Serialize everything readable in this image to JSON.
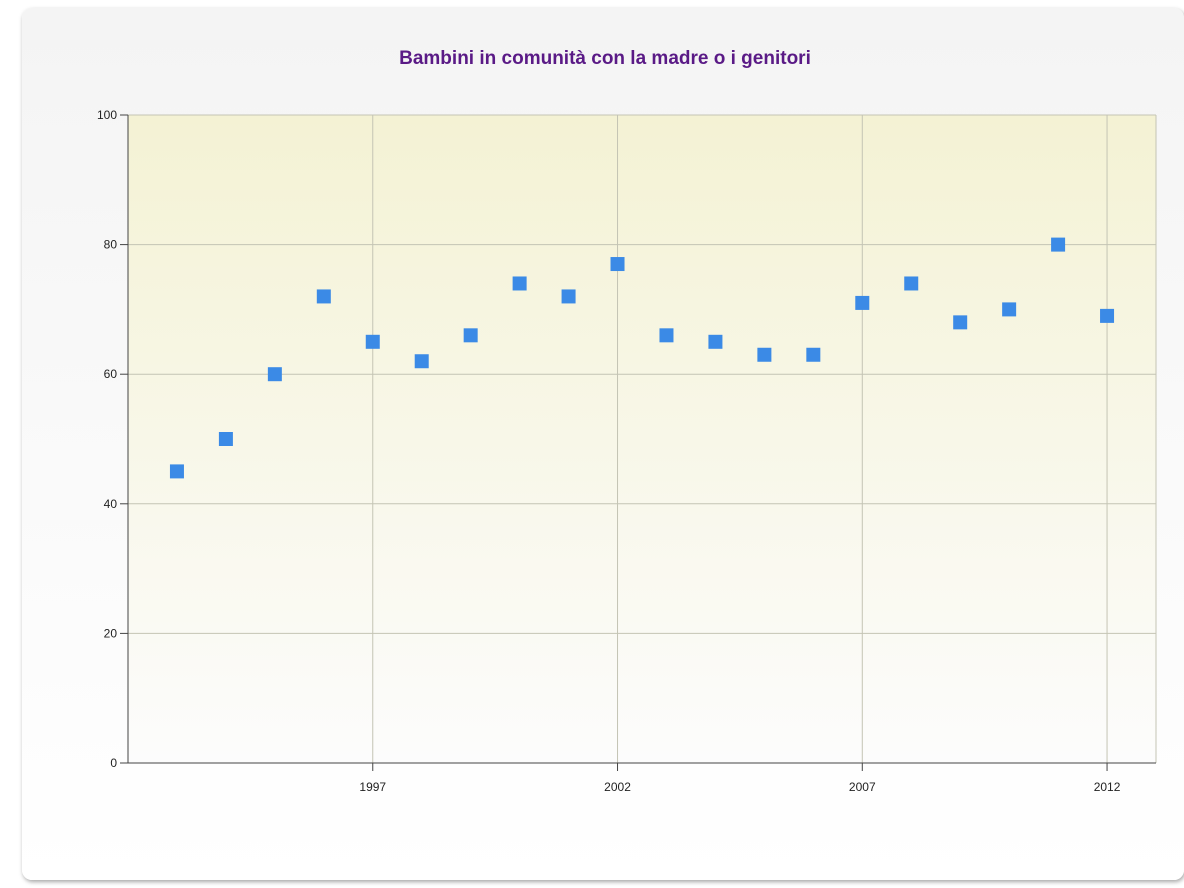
{
  "chart_data": {
    "type": "scatter",
    "title": "Bambini in comunità con la madre o i genitori",
    "xlabel": "",
    "ylabel": "",
    "x": [
      1993,
      1994,
      1995,
      1996,
      1997,
      1998,
      1999,
      2000,
      2001,
      2002,
      2003,
      2004,
      2005,
      2006,
      2007,
      2008,
      2009,
      2010,
      2011,
      2012
    ],
    "y": [
      45,
      50,
      60,
      72,
      65,
      62,
      66,
      74,
      72,
      77,
      66,
      65,
      63,
      63,
      71,
      74,
      68,
      70,
      80,
      69
    ],
    "xlim": [
      1992,
      2013
    ],
    "ylim": [
      0,
      100
    ],
    "x_ticks": [
      "1997",
      "2002",
      "2007",
      "2012"
    ],
    "y_ticks": [
      "0",
      "20",
      "40",
      "60",
      "80",
      "100"
    ],
    "grid": true,
    "legend": "none",
    "marker_color": "#3b8ae6"
  }
}
